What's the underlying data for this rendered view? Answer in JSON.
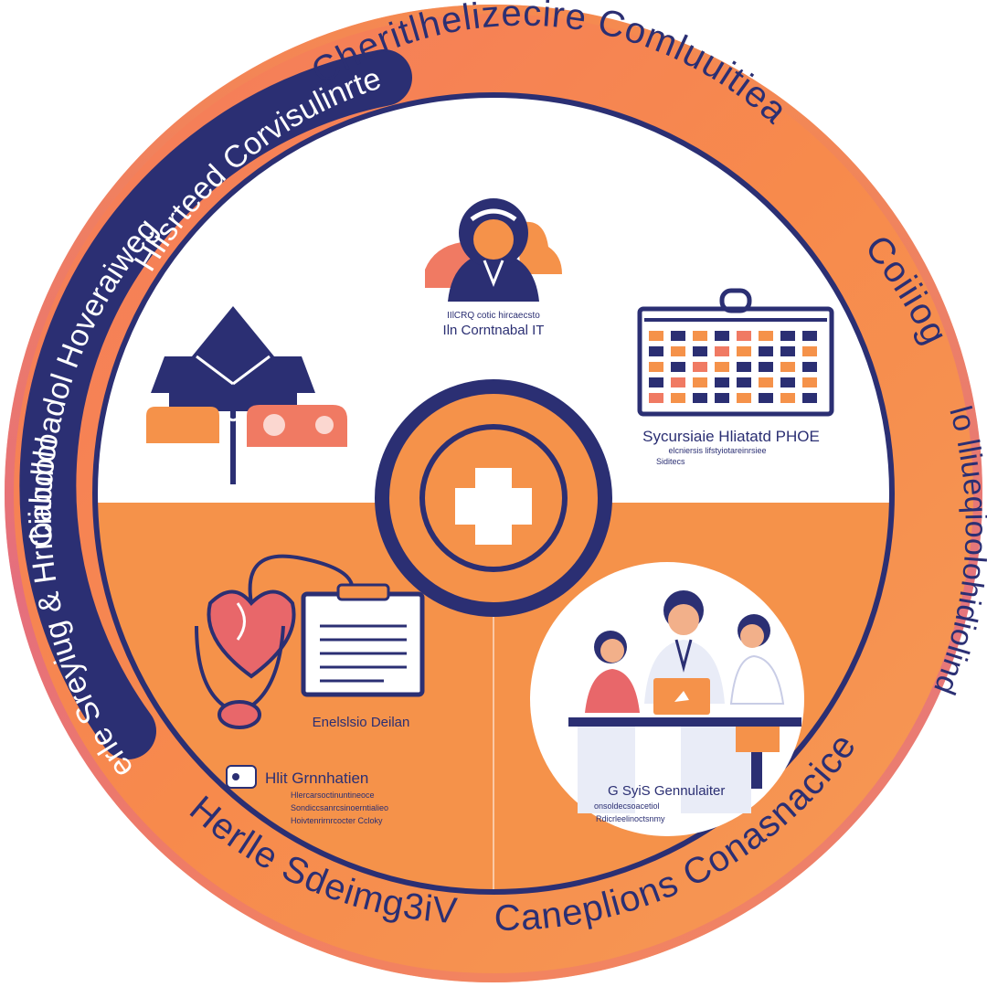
{
  "ring": {
    "top_label": "Cheritlhelizecire Comluuitiea",
    "right_top_label": "Coiiiog",
    "right_label": "lo lliueqioolohidiolind",
    "bottom_right_label": "Caneplions Conasnacice",
    "bottom_left_label": "Herlle Sdeimg3iV",
    "left_bottom_label": "& Herle Sreyiug & Hrrbabdlol",
    "left_label": "Ciiuuoloadol Hoveraiweg",
    "left_top_label": "Hlisrteed Corvisulinrte"
  },
  "captions": {
    "team_line1": "IIlCRQ cotic hircaecsto",
    "team_line2": "Iln Corntnabal IT",
    "calendar_line1": "Sycursiaie Hliatatd PHOE",
    "calendar_line2": "elcniersis lifstyiotareinrsiee",
    "calendar_line3": "Siditecs",
    "clipboard_label": "Enelslsio Deilan",
    "stetho_title": "Hlit Grnnhatien",
    "stetho_line1": "Hlercarsoctinuntineoce",
    "stetho_line2": "Sondiccsanrcsinoerntialieo",
    "stetho_line3": "Hoivtenrirnrcocter Ccloky",
    "doctors_title": "G SyiS Gennulaiter",
    "doctors_line1": "onsoldecsoacetiol",
    "doctors_line2": "Rdicrleelinoctsnmy"
  },
  "colors": {
    "navy": "#2b2f73",
    "orange": "#f5924a",
    "ring_orange": "#f78a4c",
    "pink": "#e8676a",
    "salmon": "#f2835f",
    "white": "#ffffff"
  }
}
